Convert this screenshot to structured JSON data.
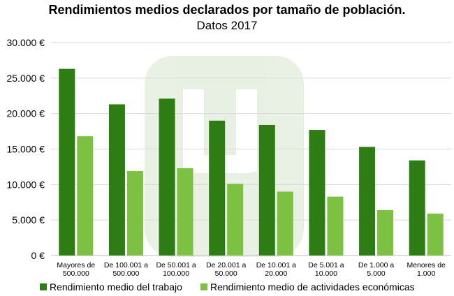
{
  "chart_data": {
    "type": "bar",
    "title": "Rendimientos medios declarados por tamaño de población.",
    "subtitle": "Datos 2017",
    "xlabel": "",
    "ylabel": "",
    "ylim": [
      0,
      30000
    ],
    "yticks": [
      "0 €",
      "5.000 €",
      "10.000 €",
      "15.000 €",
      "20.000 €",
      "25.000 €",
      "30.000 €"
    ],
    "grid": true,
    "legend": "bottom",
    "categories": [
      [
        "Mayores de",
        "500.000"
      ],
      [
        "De 100.001 a",
        "500.000"
      ],
      [
        "De 50.001 a",
        "100.000"
      ],
      [
        "De 20.001 a",
        "50.000"
      ],
      [
        "De 10.001 a",
        "20.000"
      ],
      [
        "De 5.001 a",
        "10.000"
      ],
      [
        "De 1.000 a",
        "5.000"
      ],
      [
        "Menores de",
        "1.000"
      ]
    ],
    "series": [
      {
        "name": "Rendimiento medio del trabajo",
        "color": "#2e7d14",
        "values": [
          26300,
          21300,
          22100,
          19000,
          18400,
          17700,
          15300,
          13400
        ]
      },
      {
        "name": "Rendimiento medio de actividades económicas",
        "color": "#7cc142",
        "values": [
          16800,
          11900,
          12300,
          10100,
          9000,
          8300,
          6400,
          5900
        ]
      }
    ]
  }
}
